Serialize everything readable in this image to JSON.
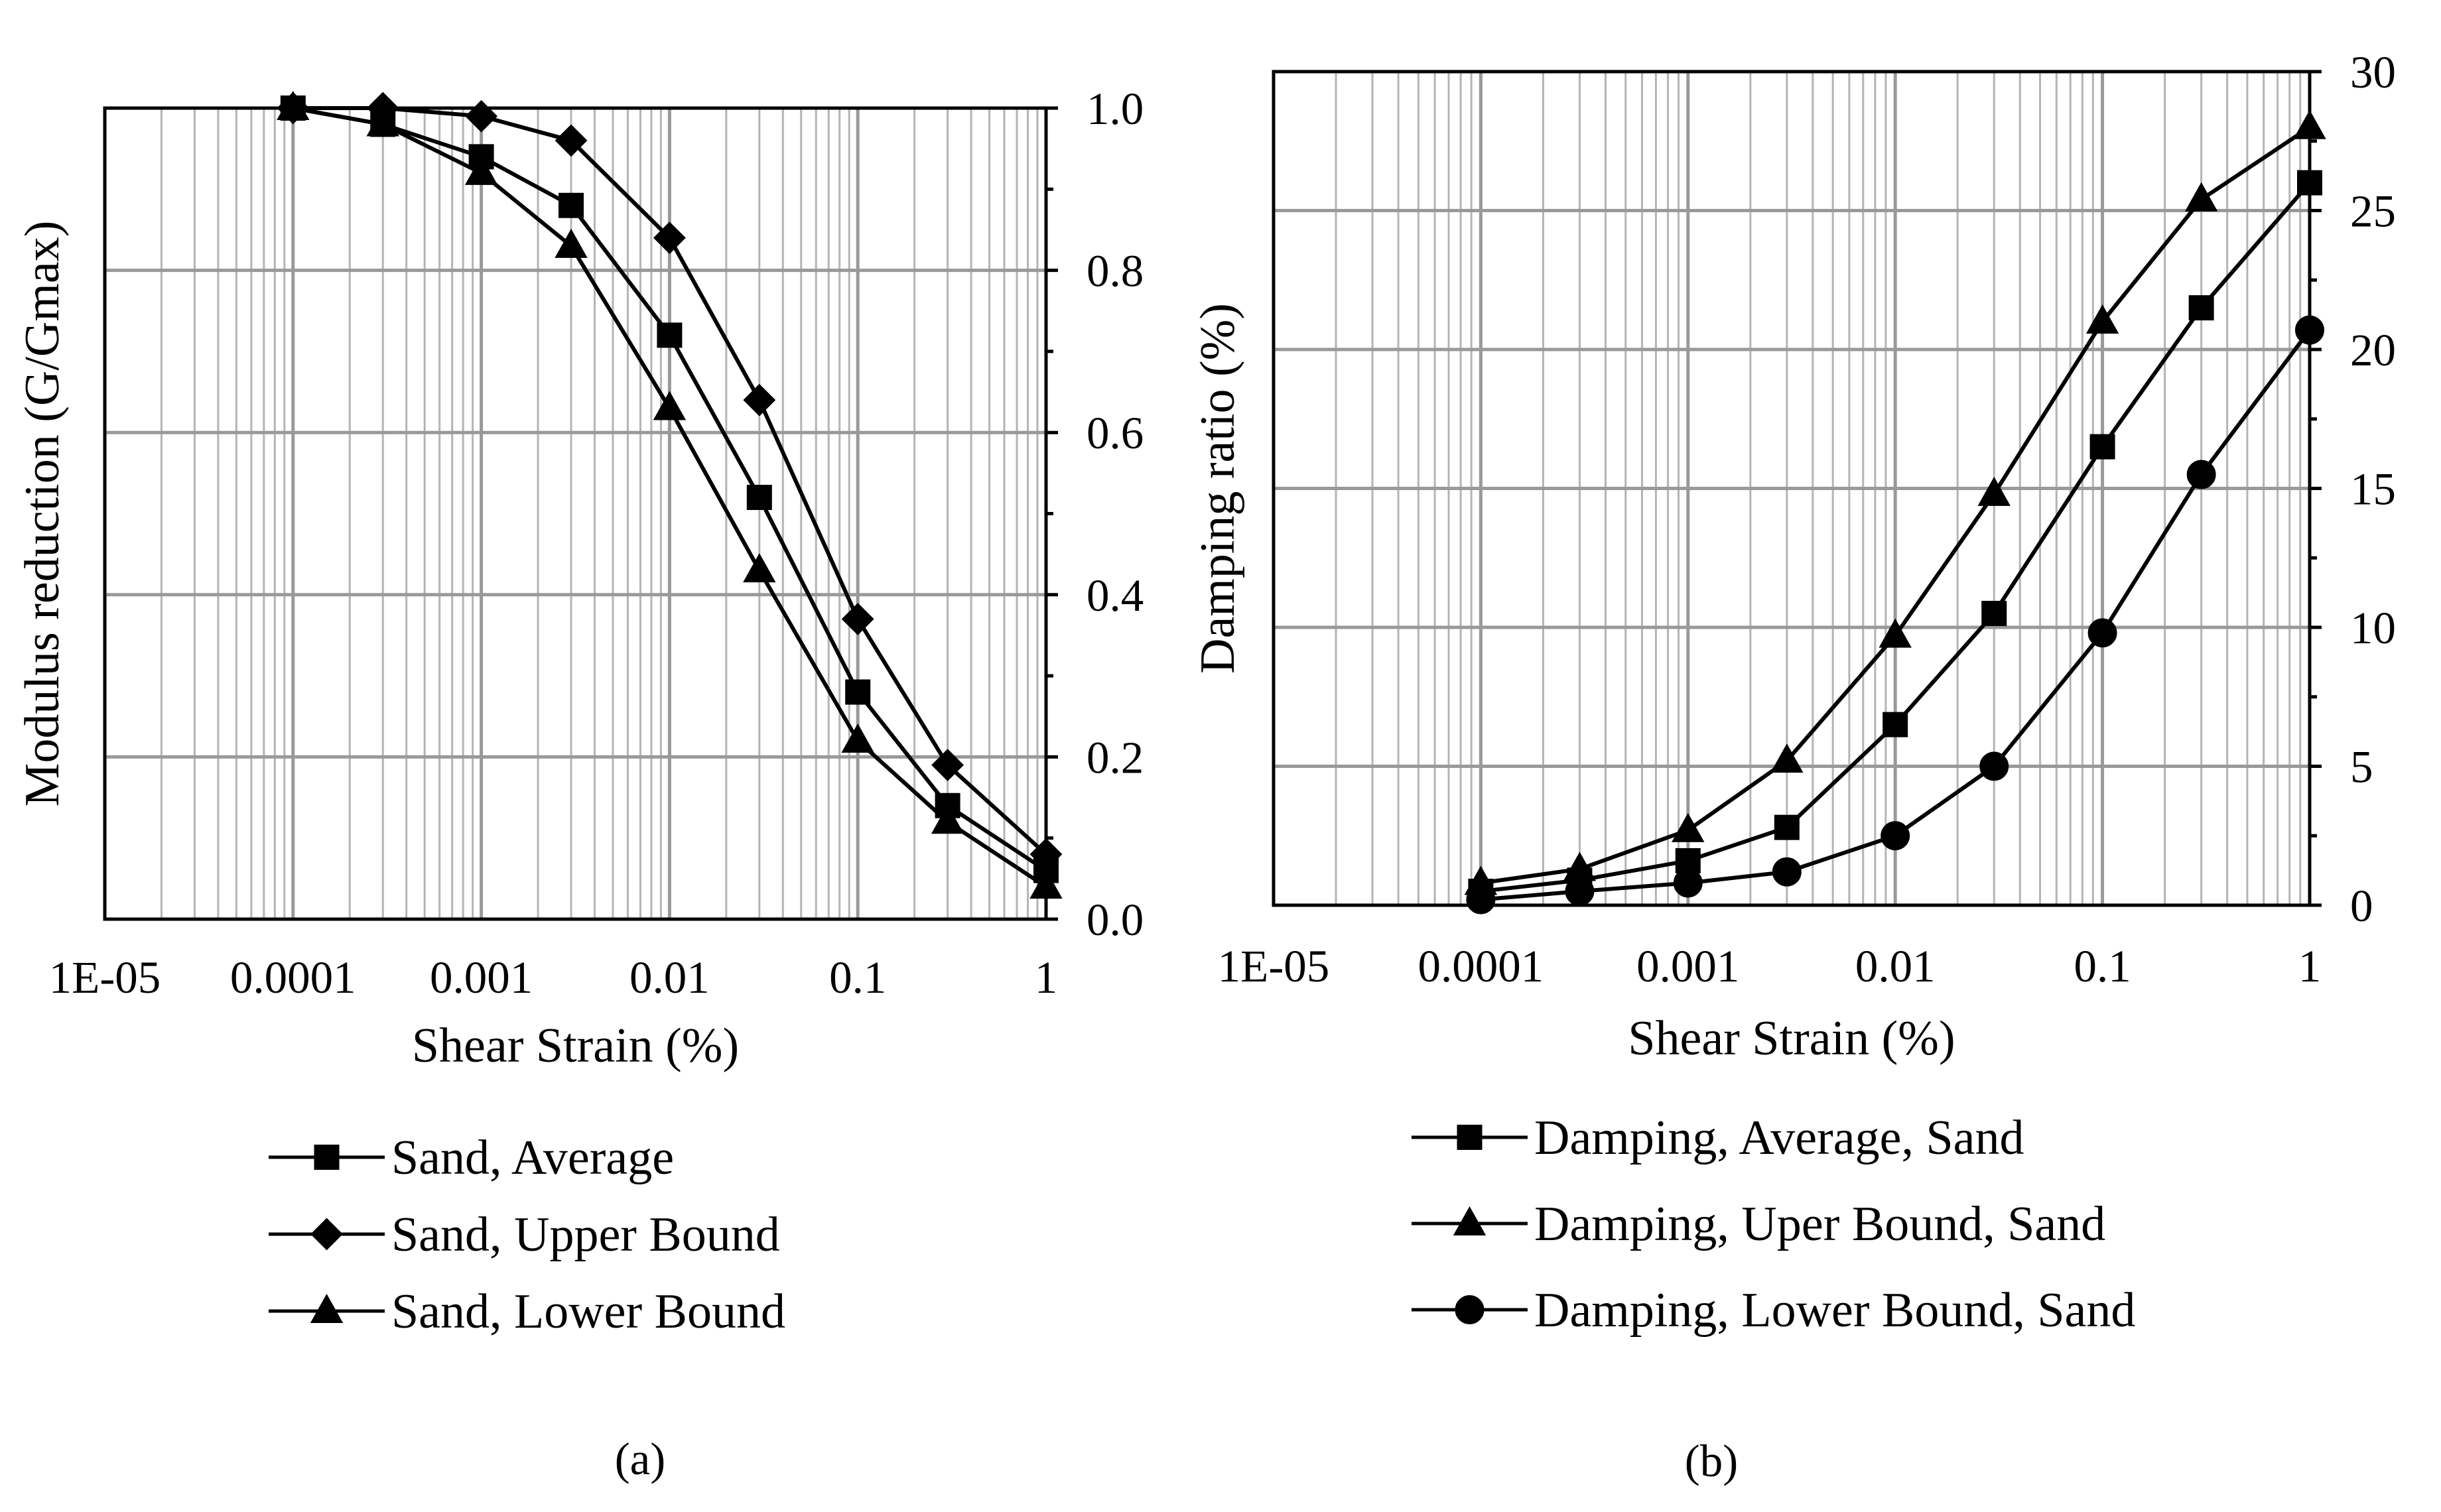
{
  "chart_data": [
    {
      "panel_label": "(a)",
      "type": "line",
      "title": "",
      "xlabel": "Shear Strain (%)",
      "ylabel": "Modulus reduction (G/Gmax)",
      "xscale": "log",
      "xlim": [
        1e-05,
        1
      ],
      "ylim": [
        0,
        1
      ],
      "y_axis_side": "right",
      "ylabel_side": "left",
      "grid": true,
      "legend_position": "below",
      "x_tick_labels": [
        "1E-05",
        "0.0001",
        "0.001",
        "0.01",
        "0.1",
        "1"
      ],
      "x_ticks": [
        1e-05,
        0.0001,
        0.001,
        0.01,
        0.1,
        1
      ],
      "y_tick_labels": [
        "0.0",
        "0.2",
        "0.4",
        "0.6",
        "0.8",
        "1.0"
      ],
      "y_ticks": [
        0,
        0.2,
        0.4,
        0.6,
        0.8,
        1.0
      ],
      "series": [
        {
          "name": "Sand, Average",
          "marker": "square",
          "x": [
            0.0001,
            0.0003,
            0.001,
            0.003,
            0.01,
            0.03,
            0.1,
            0.3,
            1
          ],
          "y": [
            1.0,
            0.98,
            0.94,
            0.88,
            0.72,
            0.52,
            0.28,
            0.14,
            0.06
          ]
        },
        {
          "name": "Sand, Upper Bound",
          "marker": "diamond",
          "x": [
            0.0001,
            0.0003,
            0.001,
            0.003,
            0.01,
            0.03,
            0.1,
            0.3,
            1
          ],
          "y": [
            1.0,
            1.0,
            0.99,
            0.96,
            0.84,
            0.64,
            0.37,
            0.19,
            0.08
          ]
        },
        {
          "name": "Sand, Lower Bound",
          "marker": "triangle",
          "x": [
            0.0001,
            0.0003,
            0.001,
            0.003,
            0.01,
            0.03,
            0.1,
            0.3,
            1
          ],
          "y": [
            1.0,
            0.98,
            0.92,
            0.83,
            0.63,
            0.43,
            0.22,
            0.12,
            0.04
          ]
        }
      ]
    },
    {
      "panel_label": "(b)",
      "type": "line",
      "title": "",
      "xlabel": "Shear Strain (%)",
      "ylabel": "Damping ratio (%)",
      "xscale": "log",
      "xlim": [
        1e-05,
        1
      ],
      "ylim": [
        0,
        30
      ],
      "y_axis_side": "right",
      "ylabel_side": "left",
      "grid": true,
      "legend_position": "below",
      "x_tick_labels": [
        "1E-05",
        "0.0001",
        "0.001",
        "0.01",
        "0.1",
        "1"
      ],
      "x_ticks": [
        1e-05,
        0.0001,
        0.001,
        0.01,
        0.1,
        1
      ],
      "y_tick_labels": [
        "0",
        "5",
        "10",
        "15",
        "20",
        "25",
        "30"
      ],
      "y_ticks": [
        0,
        5,
        10,
        15,
        20,
        25,
        30
      ],
      "series": [
        {
          "name": "Damping, Average, Sand",
          "marker": "square",
          "x": [
            0.0001,
            0.0003,
            0.001,
            0.003,
            0.01,
            0.03,
            0.1,
            0.3,
            1
          ],
          "y": [
            0.5,
            0.9,
            1.6,
            2.8,
            6.5,
            10.5,
            16.5,
            21.5,
            26.0
          ]
        },
        {
          "name": "Damping, Uper Bound, Sand",
          "marker": "triangle",
          "x": [
            0.0001,
            0.0003,
            0.001,
            0.003,
            0.01,
            0.03,
            0.1,
            0.3,
            1
          ],
          "y": [
            0.8,
            1.3,
            2.7,
            5.2,
            9.7,
            14.8,
            21.0,
            25.4,
            28.0
          ]
        },
        {
          "name": "Damping, Lower Bound, Sand",
          "marker": "circle",
          "x": [
            0.0001,
            0.0003,
            0.001,
            0.003,
            0.01,
            0.03,
            0.1,
            0.3,
            1
          ],
          "y": [
            0.2,
            0.5,
            0.8,
            1.2,
            2.5,
            5.0,
            9.8,
            15.5,
            20.7
          ]
        }
      ]
    }
  ]
}
